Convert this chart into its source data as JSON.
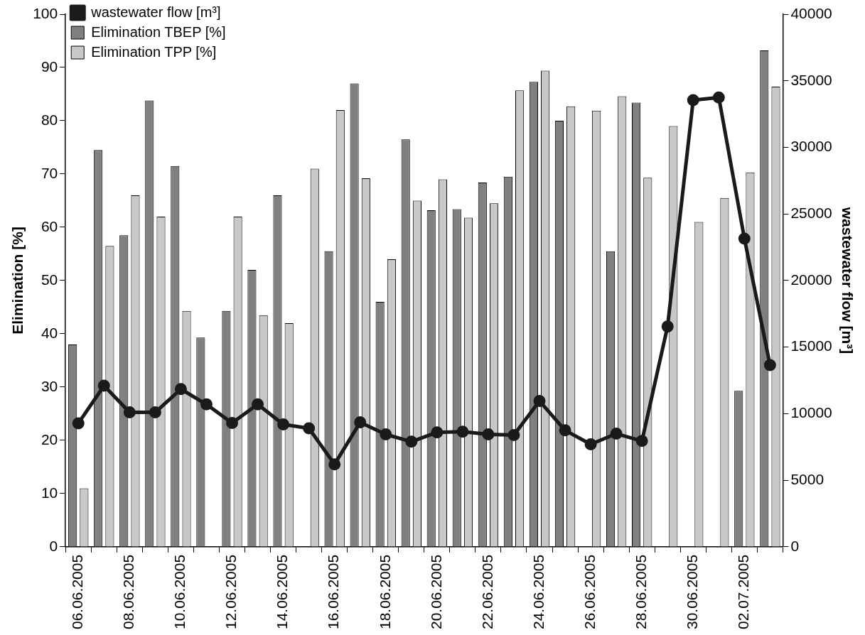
{
  "chart_data": {
    "type": "bar",
    "ylabel": "Elimination [%]",
    "y2label": "wastewater flow [m³]",
    "categories": [
      "06.06.2005",
      null,
      "08.06.2005",
      null,
      "10.06.2005",
      null,
      "12.06.2005",
      null,
      "14.06.2005",
      null,
      "16.06.2005",
      null,
      "18.06.2005",
      null,
      "20.06.2005",
      null,
      "22.06.2005",
      null,
      "24.06.2005",
      null,
      "26.06.2005",
      null,
      "28.06.2005",
      null,
      "30.06.2005",
      null,
      "02.07.2005",
      null
    ],
    "series": [
      {
        "name": "Elimination TBEP [%]",
        "color": "#808080",
        "values": [
          38,
          74.5,
          58.5,
          83.8,
          71.5,
          39.3,
          44.3,
          52,
          66,
          null,
          55.5,
          87,
          46,
          76.5,
          63.2,
          63.4,
          68.4,
          69.5,
          87.3,
          80,
          null,
          55.5,
          83.4,
          null,
          null,
          null,
          29.3,
          93.2
        ]
      },
      {
        "name": "Elimination TPP [%]",
        "color": "#c8c8c8",
        "values": [
          11,
          56.5,
          66,
          62,
          44.3,
          null,
          62,
          43.5,
          42,
          71,
          82,
          69.2,
          54,
          65,
          69,
          61.8,
          64.5,
          85.7,
          89.4,
          82.7,
          81.9,
          84.6,
          69.3,
          79,
          61,
          65.5,
          70.3,
          86.4
        ]
      },
      {
        "name": "wastewater flow [m³]",
        "type": "line",
        "axis": "y2",
        "color": "#1a1a1a",
        "marker": "circle",
        "values": [
          9280,
          12100,
          10100,
          10100,
          11850,
          10700,
          9300,
          10700,
          9200,
          8900,
          6200,
          9350,
          8450,
          7900,
          8600,
          8650,
          8450,
          8400,
          10950,
          8750,
          7700,
          8500,
          7950,
          16550,
          33550,
          33750,
          23150,
          13650
        ]
      }
    ],
    "ylim": [
      0,
      100
    ],
    "yticks": [
      0,
      10,
      20,
      30,
      40,
      50,
      60,
      70,
      80,
      90,
      100
    ],
    "y2lim": [
      0,
      40000
    ],
    "y2ticks": [
      0,
      5000,
      10000,
      15000,
      20000,
      25000,
      30000,
      35000,
      40000
    ],
    "grid": false,
    "legend": "top left"
  }
}
